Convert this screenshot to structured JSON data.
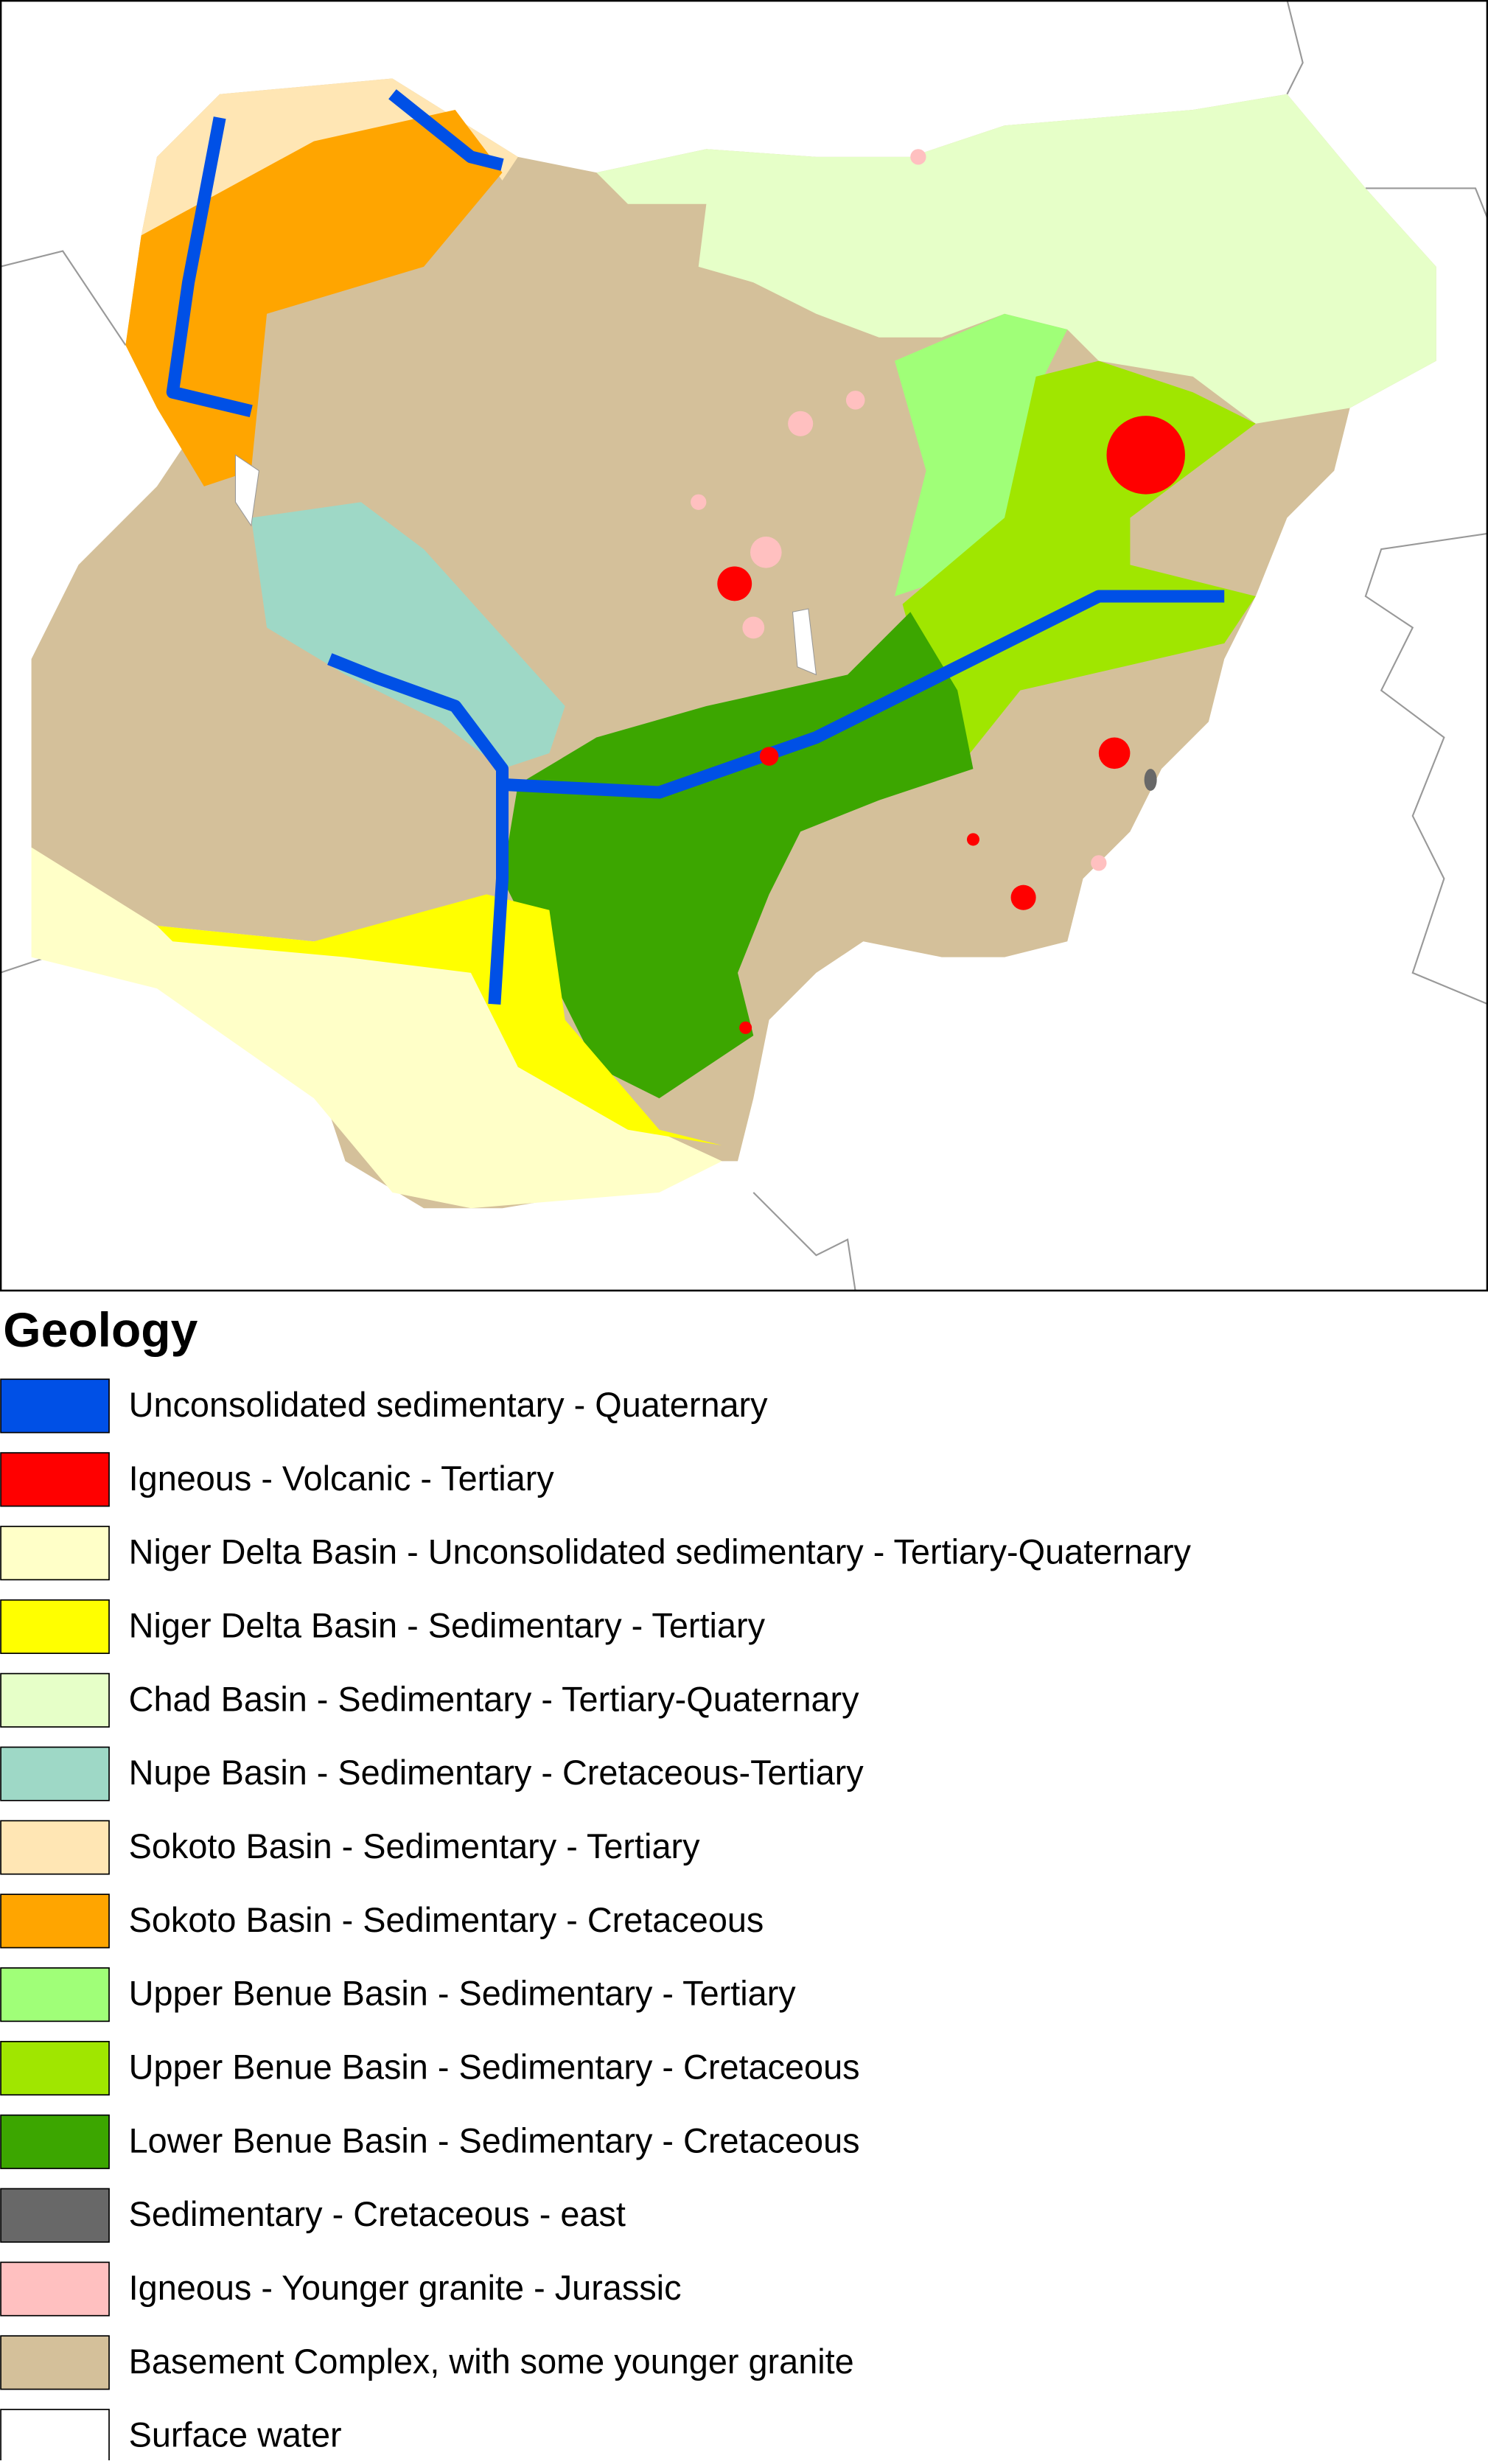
{
  "legend": {
    "title": "Geology",
    "items": [
      {
        "name": "Unconsolidated sedimentary - Quaternary",
        "color": "#0050e6"
      },
      {
        "name": "Igneous - Volcanic - Tertiary",
        "color": "#ff0000"
      },
      {
        "name": "Niger Delta Basin - Unconsolidated sedimentary - Tertiary-Quaternary",
        "color": "#ffffc8"
      },
      {
        "name": "Niger Delta Basin - Sedimentary - Tertiary",
        "color": "#ffff00"
      },
      {
        "name": "Chad Basin - Sedimentary - Tertiary-Quaternary",
        "color": "#e6ffc8"
      },
      {
        "name": "Nupe Basin - Sedimentary - Cretaceous-Tertiary",
        "color": "#9ed8c6"
      },
      {
        "name": "Sokoto Basin - Sedimentary - Tertiary",
        "color": "#ffe6b4"
      },
      {
        "name": "Sokoto Basin - Sedimentary - Cretaceous",
        "color": "#ffa500"
      },
      {
        "name": "Upper Benue Basin - Sedimentary - Tertiary",
        "color": "#a0ff78"
      },
      {
        "name": "Upper Benue Basin - Sedimentary - Cretaceous",
        "color": "#a0e600"
      },
      {
        "name": "Lower Benue Basin - Sedimentary - Cretaceous",
        "color": "#3ca600"
      },
      {
        "name": "Sedimentary - Cretaceous - east",
        "color": "#686868"
      },
      {
        "name": "Igneous - Younger granite - Jurassic",
        "color": "#ffc0c0"
      },
      {
        "name": "Basement Complex, with some younger granite",
        "color": "#d4c09a"
      },
      {
        "name": "Surface water",
        "color": "#ffffff"
      }
    ]
  }
}
